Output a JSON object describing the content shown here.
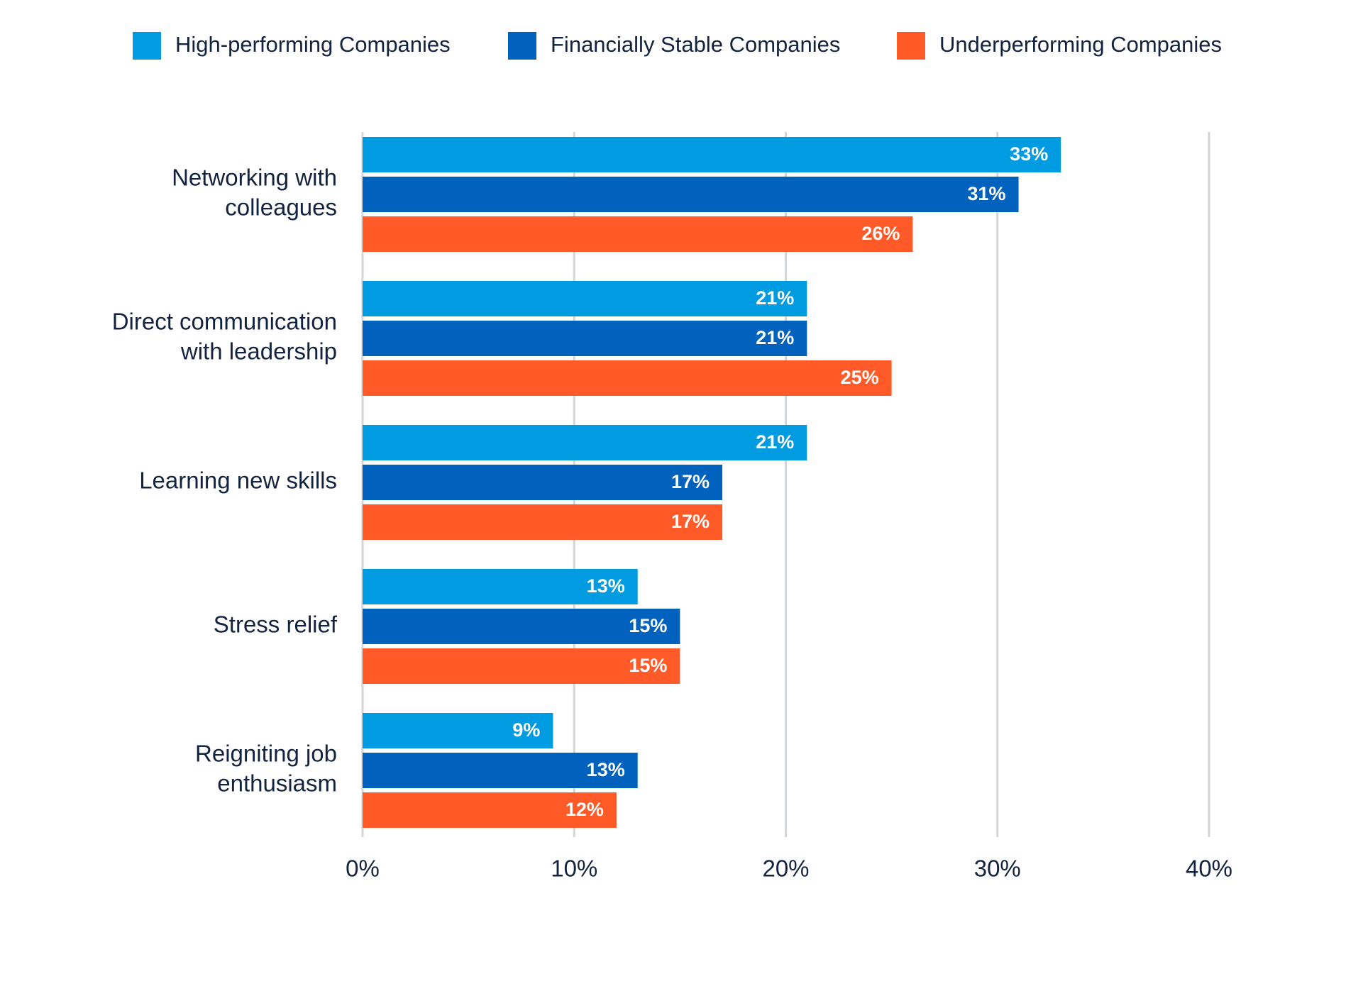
{
  "chart_data": {
    "type": "bar",
    "orientation": "horizontal",
    "categories": [
      [
        "Networking with",
        "colleagues"
      ],
      [
        "Direct communication",
        "with leadership"
      ],
      [
        "Learning new skills"
      ],
      [
        "Stress relief"
      ],
      [
        "Reigniting job",
        "enthusiasm"
      ]
    ],
    "series": [
      {
        "name": "High-performing Companies",
        "color": "#009be0",
        "values": [
          33,
          21,
          21,
          13,
          9
        ]
      },
      {
        "name": "Financially Stable Companies",
        "color": "#0062bd",
        "values": [
          31,
          21,
          17,
          15,
          13
        ]
      },
      {
        "name": "Underperforming Companies",
        "color": "#ff5a28",
        "values": [
          26,
          25,
          17,
          15,
          12
        ]
      }
    ],
    "value_suffix": "%",
    "xlim": [
      0,
      40
    ],
    "xticks": [
      "0%",
      "10%",
      "20%",
      "30%",
      "40%"
    ],
    "grid": true,
    "legend": "top",
    "title": "",
    "xlabel": "",
    "ylabel": ""
  }
}
